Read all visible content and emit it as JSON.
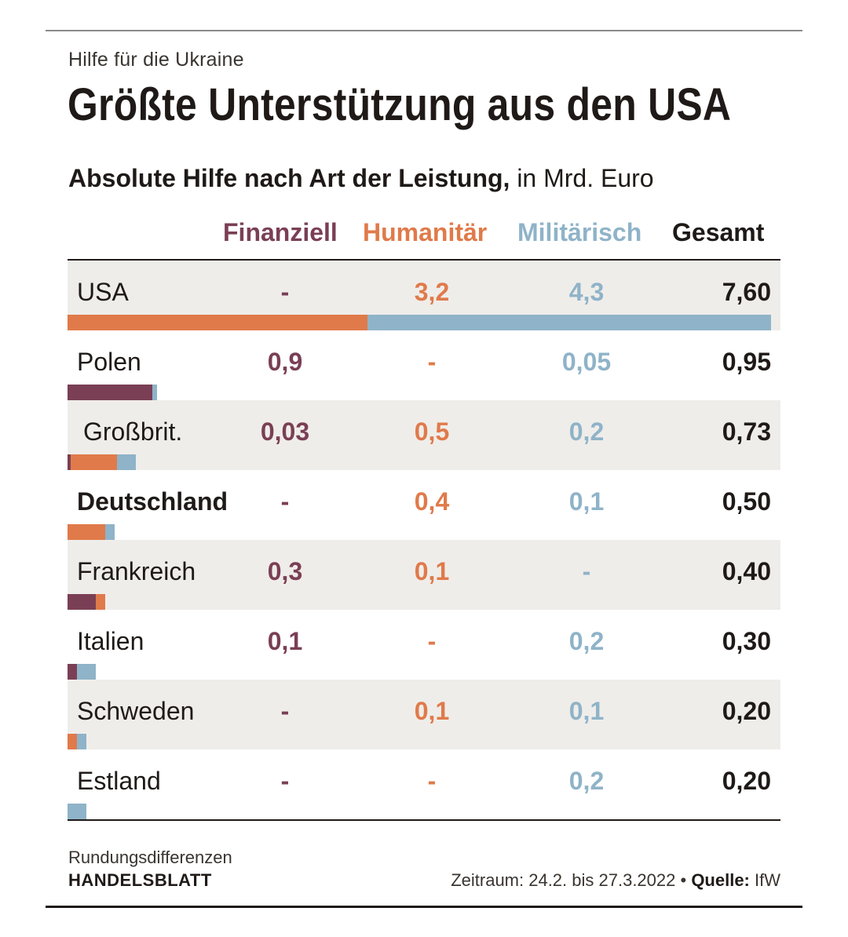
{
  "kicker": "Hilfe für die Ukraine",
  "headline": "Größte Unterstützung aus den USA",
  "subtitle_bold": "Absolute Hilfe nach Art der Leistung,",
  "subtitle_rest": " in Mrd. Euro",
  "columns": {
    "fin": "Finanziell",
    "hum": "Humanitär",
    "mil": "Militärisch",
    "tot": "Gesamt"
  },
  "colors": {
    "finanziell": "#7a3f55",
    "humanitaer": "#e07a4a",
    "militaerisch": "#8fb3c8",
    "row_shade": "#efedea"
  },
  "chart_data": {
    "type": "bar",
    "orientation": "horizontal-stacked",
    "title": "Größte Unterstützung aus den USA",
    "subtitle": "Absolute Hilfe nach Art der Leistung, in Mrd. Euro",
    "unit": "Mrd. Euro",
    "categories": [
      "USA",
      "Polen",
      "Großbrit.",
      "Deutschland",
      "Frankreich",
      "Italien",
      "Schweden",
      "Estland"
    ],
    "series": [
      {
        "name": "Finanziell",
        "values": [
          0,
          0.9,
          0.03,
          0,
          0.3,
          0.1,
          0,
          0
        ],
        "labels": [
          "-",
          "0,9",
          "0,03",
          "-",
          "0,3",
          "0,1",
          "-",
          "-"
        ]
      },
      {
        "name": "Humanitär",
        "values": [
          3.2,
          0,
          0.5,
          0.4,
          0.1,
          0,
          0.1,
          0
        ],
        "labels": [
          "3,2",
          "-",
          "0,5",
          "0,4",
          "0,1",
          "-",
          "0,1",
          "-"
        ]
      },
      {
        "name": "Militärisch",
        "values": [
          4.3,
          0.05,
          0.2,
          0.1,
          0,
          0.2,
          0.1,
          0.2
        ],
        "labels": [
          "4,3",
          "0,05",
          "0,2",
          "0,1",
          "-",
          "0,2",
          "0,1",
          "0,2"
        ]
      }
    ],
    "totals": [
      7.6,
      0.95,
      0.73,
      0.5,
      0.4,
      0.3,
      0.2,
      0.2
    ],
    "total_labels": [
      "7,60",
      "0,95",
      "0,73",
      "0,50",
      "0,40",
      "0,30",
      "0,20",
      "0,20"
    ],
    "xlim": [
      0,
      7.6
    ],
    "highlight": "Deutschland"
  },
  "footer": {
    "note": "Rundungsdifferenzen",
    "brand": "HANDELSBLATT",
    "period": "Zeitraum: 24.2. bis 27.3.2022 • ",
    "source_label": "Quelle:",
    "source_value": " IfW"
  }
}
